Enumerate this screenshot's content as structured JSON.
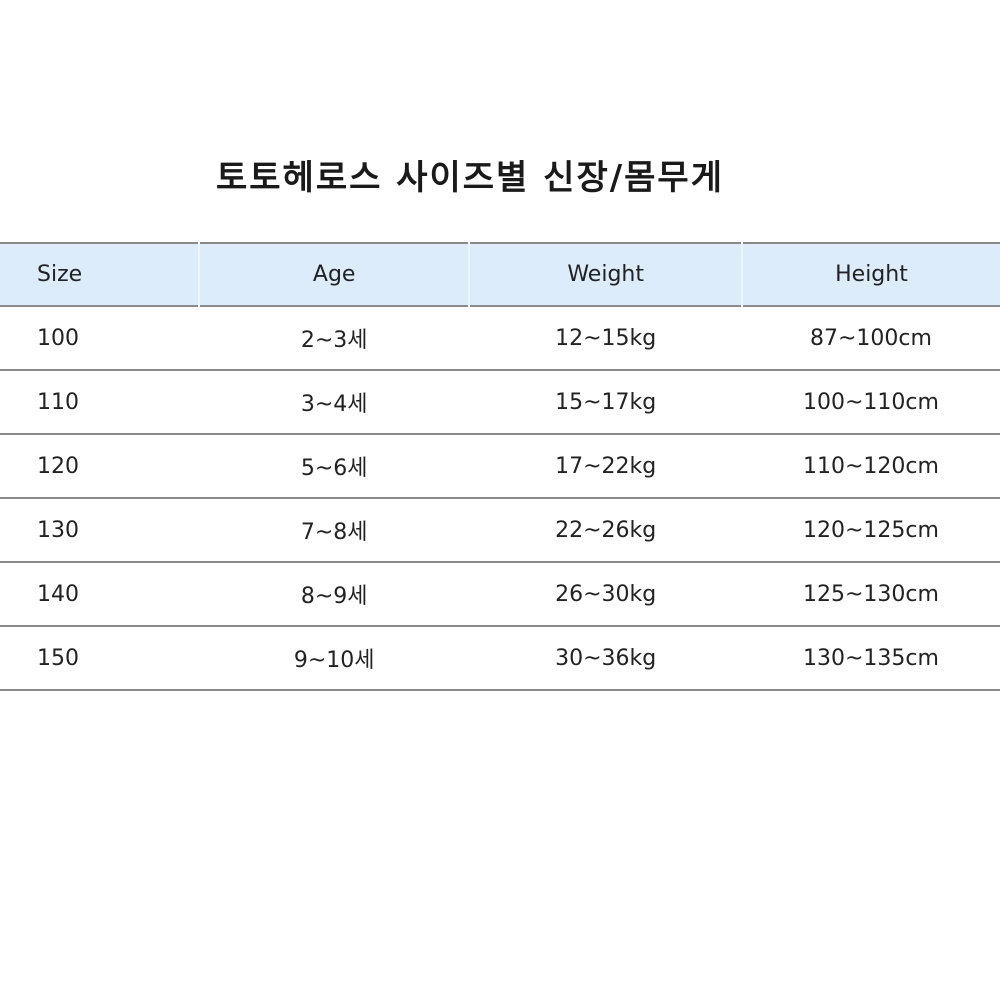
{
  "title": "토토헤로스 사이즈별 신장/몸무게",
  "headers": [
    "Size",
    "Age",
    "Weight",
    "Height"
  ],
  "rows": [
    [
      "100",
      "2~3세",
      "12~15kg",
      "87~100cm"
    ],
    [
      "110",
      "3~4세",
      "15~17kg",
      "100~110cm"
    ],
    [
      "120",
      "5~6세",
      "17~22kg",
      "110~120cm"
    ],
    [
      "130",
      "7~8세",
      "22~26kg",
      "120~125cm"
    ],
    [
      "140",
      "8~9세",
      "26~30kg",
      "125~130cm"
    ],
    [
      "150",
      "9~10세",
      "30~36kg",
      "130~135cm"
    ]
  ],
  "colors": {
    "header_bg": "#dcecfa",
    "rule": "#8a8a8a"
  }
}
